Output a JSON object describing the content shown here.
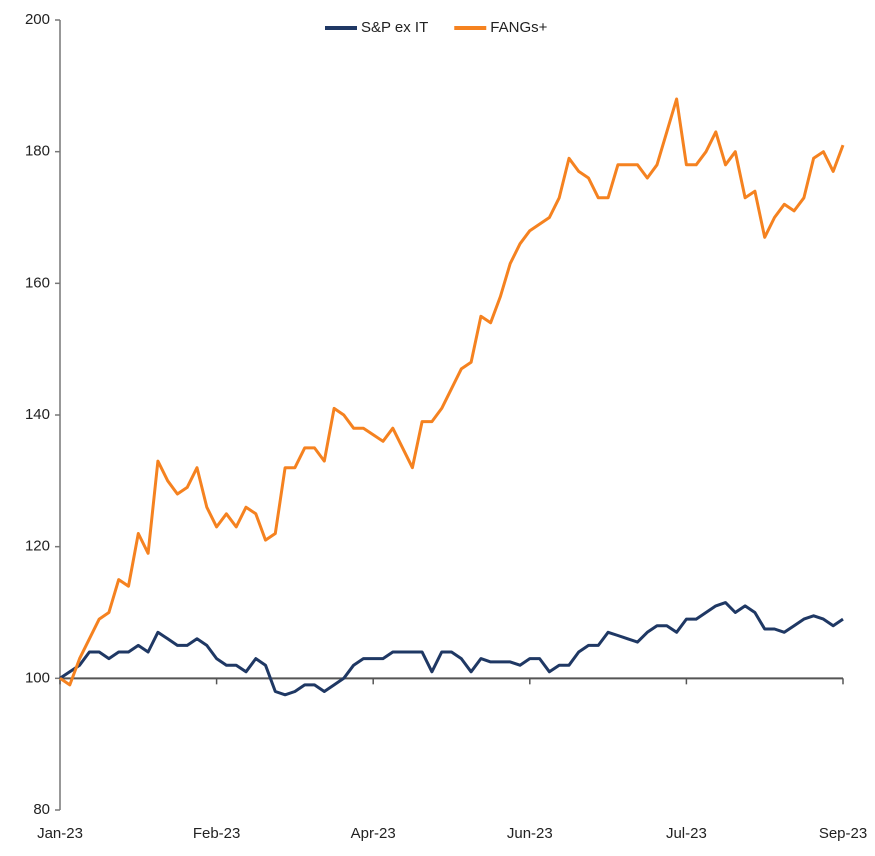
{
  "chart_data": {
    "type": "line",
    "categories": [
      "Jan-23",
      null,
      null,
      null,
      null,
      null,
      null,
      null,
      null,
      null,
      null,
      null,
      null,
      null,
      null,
      null,
      "Feb-23",
      null,
      null,
      null,
      null,
      null,
      null,
      null,
      null,
      null,
      null,
      null,
      null,
      null,
      null,
      null,
      "Apr-23",
      null,
      null,
      null,
      null,
      null,
      null,
      null,
      null,
      null,
      null,
      null,
      null,
      null,
      null,
      null,
      "Jun-23",
      null,
      null,
      null,
      null,
      null,
      null,
      null,
      null,
      null,
      null,
      null,
      null,
      null,
      null,
      null,
      "Jul-23",
      null,
      null,
      null,
      null,
      null,
      null,
      null,
      null,
      null,
      null,
      null,
      null,
      null,
      null,
      null,
      "Sep-23"
    ],
    "series": [
      {
        "name": "S&P ex IT",
        "color": "#1f3864",
        "values": [
          100,
          101,
          102,
          104,
          104,
          103,
          104,
          104,
          105,
          104,
          107,
          106,
          105,
          105,
          106,
          105,
          103,
          102,
          102,
          101,
          103,
          102,
          98,
          97.5,
          98,
          99,
          99,
          98,
          99,
          100,
          102,
          103,
          103,
          103,
          104,
          104,
          104,
          104,
          101,
          104,
          104,
          103,
          101,
          103,
          102.5,
          102.5,
          102.5,
          102,
          103,
          103,
          101,
          102,
          102,
          104,
          105,
          105,
          107,
          106.5,
          106,
          105.5,
          107,
          108,
          108,
          107,
          109,
          109,
          110,
          111,
          111.5,
          110,
          111,
          110,
          107.5,
          107.5,
          107,
          108,
          109,
          109.5,
          109,
          108,
          109
        ]
      },
      {
        "name": "FANGs+",
        "color": "#f58220",
        "values": [
          100,
          99,
          103,
          106,
          109,
          110,
          115,
          114,
          122,
          119,
          133,
          130,
          128,
          129,
          132,
          126,
          123,
          125,
          123,
          126,
          125,
          121,
          122,
          132,
          132,
          135,
          135,
          133,
          141,
          140,
          138,
          138,
          137,
          136,
          138,
          135,
          132,
          139,
          139,
          141,
          144,
          147,
          148,
          155,
          154,
          158,
          163,
          166,
          168,
          169,
          170,
          173,
          179,
          177,
          176,
          173,
          173,
          178,
          178,
          178,
          176,
          178,
          183,
          188,
          178,
          178,
          180,
          183,
          178,
          180,
          173,
          174,
          167,
          170,
          172,
          171,
          173,
          179,
          180,
          177,
          181
        ]
      }
    ],
    "ylim": [
      80,
      200
    ],
    "yticks": [
      80,
      100,
      120,
      140,
      160,
      180,
      200
    ],
    "legend": "top"
  }
}
